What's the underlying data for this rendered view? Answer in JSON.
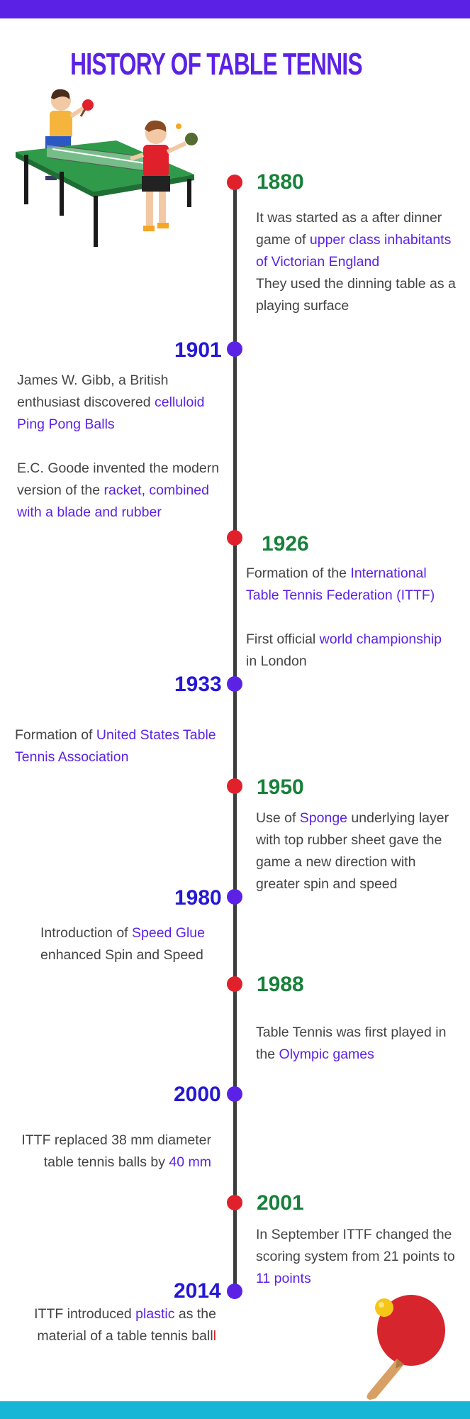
{
  "title": "HISTORY OF TABLE TENNIS",
  "colors": {
    "top_bar": "#5b22e6",
    "bottom_bar": "#17b6d6",
    "year_green": "#17803a",
    "year_blue": "#2418d6",
    "highlight": "#5b22e6",
    "dot_red": "#e0212b",
    "dot_purple": "#5b22e6"
  },
  "illustrations": [
    "players-at-table-illustration",
    "paddle-and-ball-illustration"
  ],
  "events": {
    "e1880": {
      "year": "1880",
      "l1": "It was started as a after dinner",
      "l2a": "game of ",
      "l2b": "upper class inhabitants",
      "l3": "of Victorian England",
      "l4": "They used the dinning table as a",
      "l5": "playing surface"
    },
    "e1901": {
      "year": "1901",
      "p1l1": "James W. Gibb, a British",
      "p1l2a": "enthusiast discovered ",
      "p1l2b": "celluloid",
      "p1l3": "Ping Pong Balls",
      "p2l1": "E.C. Goode invented the modern",
      "p2l2a": "version of the ",
      "p2l2b": "racket,  combined",
      "p2l3": "with a blade and rubber"
    },
    "e1926": {
      "year": "1926",
      "p1l1a": "Formation of the ",
      "p1l1b": "International",
      "p1l2": "Table Tennis Federation (ITTF)",
      "p2l1a": "First official ",
      "p2l1b": "world championship",
      "p2l2": "in London"
    },
    "e1933": {
      "year": "1933",
      "l1a": "Formation of ",
      "l1b": "United States Table",
      "l2": "Tennis Association"
    },
    "e1950": {
      "year": "1950",
      "l1a": "Use of ",
      "l1b": "Sponge",
      "l1c": " underlying layer",
      "l2": "with top rubber sheet gave the",
      "l3": "game a new direction with",
      "l4": "greater spin and speed"
    },
    "e1980": {
      "year": "1980",
      "l1a": "Introduction of ",
      "l1b": "Speed Glue",
      "l2": "enhanced Spin and Speed"
    },
    "e1988": {
      "year": "1988",
      "l1": "Table Tennis was first played in",
      "l2a": "the ",
      "l2b": "Olympic games"
    },
    "e2000": {
      "year": "2000",
      "l1": "ITTF replaced 38 mm diameter",
      "l2a": "table tennis balls by ",
      "l2b": "40 mm"
    },
    "e2001": {
      "year": "2001",
      "l1": "In September ITTF changed the",
      "l2": "scoring system from 21 points to",
      "l3": "11 points"
    },
    "e2014": {
      "year": "2014",
      "l1a": "ITTF introduced ",
      "l1b": "plastic",
      "l1c": " as the",
      "l2a": "material of a table tennis ball",
      "l2b": "l"
    }
  }
}
